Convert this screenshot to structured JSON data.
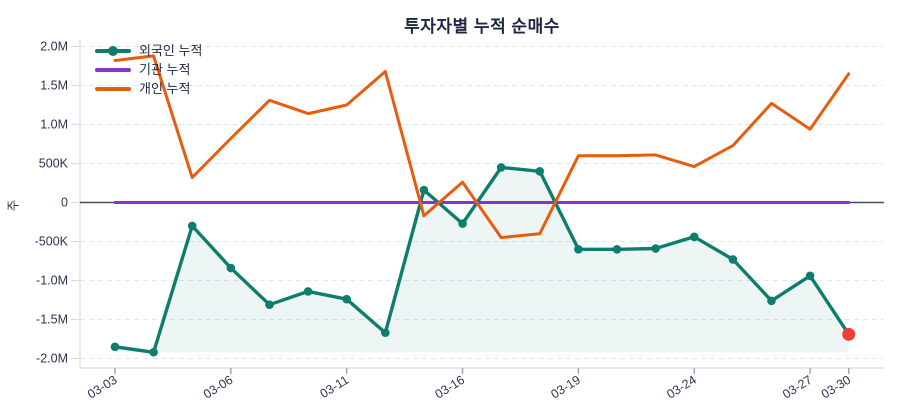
{
  "title": "투자자별 누적 순매수",
  "y_axis": {
    "title": "주",
    "ticks": [
      {
        "label": "2.0M",
        "value": 2000000
      },
      {
        "label": "1.5M",
        "value": 1500000
      },
      {
        "label": "1.0M",
        "value": 1000000
      },
      {
        "label": "500K",
        "value": 500000
      },
      {
        "label": "0",
        "value": 0
      },
      {
        "label": "-500K",
        "value": -500000
      },
      {
        "label": "-1.0M",
        "value": -1000000
      },
      {
        "label": "-1.5M",
        "value": -1500000
      },
      {
        "label": "-2.0M",
        "value": -2000000
      }
    ]
  },
  "x_axis": {
    "tick_labels": [
      "03-03",
      "03-06",
      "03-11",
      "03-16",
      "03-19",
      "03-24",
      "03-27",
      "03-30"
    ]
  },
  "colors": {
    "foreigner": "#0e7d6e",
    "institution": "#8a33cb",
    "individual": "#e85d0d",
    "endpoint": "#f23b3b",
    "zero_line": "#454b63",
    "grid": "#e3e6ec",
    "spine": "#d7dae1",
    "tick": "#9aa2b1",
    "text": "#2c3550",
    "area_fill": "rgba(14,125,110,0.07)"
  },
  "chart_data": {
    "type": "line",
    "title": "투자자별 누적 순매수",
    "xlabel": "",
    "ylabel": "주",
    "ylim": [
      -2000000,
      2000000
    ],
    "grid": "horizontal-dashed",
    "legend_position": "top-left",
    "x": [
      "03-03",
      "03-04",
      "03-05",
      "03-06",
      "03-09",
      "03-10",
      "03-11",
      "03-12",
      "03-13",
      "03-16",
      "03-17",
      "03-18",
      "03-19",
      "03-20",
      "03-23",
      "03-24",
      "03-25",
      "03-26",
      "03-27",
      "03-30"
    ],
    "series": [
      {
        "name": "외국인 누적",
        "color": "#0e7d6e",
        "markers": true,
        "area_fill": true,
        "last_point_color": "#f23b3b",
        "values": [
          -1850000,
          -1920000,
          -300000,
          -840000,
          -1310000,
          -1140000,
          -1240000,
          -1670000,
          160000,
          -270000,
          450000,
          400000,
          -600000,
          -600000,
          -590000,
          -440000,
          -730000,
          -1260000,
          -940000,
          -1690000
        ]
      },
      {
        "name": "기관 누적",
        "color": "#8a33cb",
        "markers": false,
        "area_fill": false,
        "values": [
          0,
          0,
          0,
          0,
          0,
          0,
          0,
          0,
          0,
          0,
          0,
          0,
          0,
          0,
          0,
          0,
          0,
          0,
          0,
          0
        ]
      },
      {
        "name": "개인 누적",
        "color": "#e85d0d",
        "markers": false,
        "area_fill": false,
        "values": [
          1820000,
          1880000,
          320000,
          820000,
          1310000,
          1140000,
          1250000,
          1680000,
          -170000,
          260000,
          -450000,
          -400000,
          600000,
          600000,
          610000,
          460000,
          730000,
          1270000,
          940000,
          1650000
        ]
      }
    ]
  }
}
